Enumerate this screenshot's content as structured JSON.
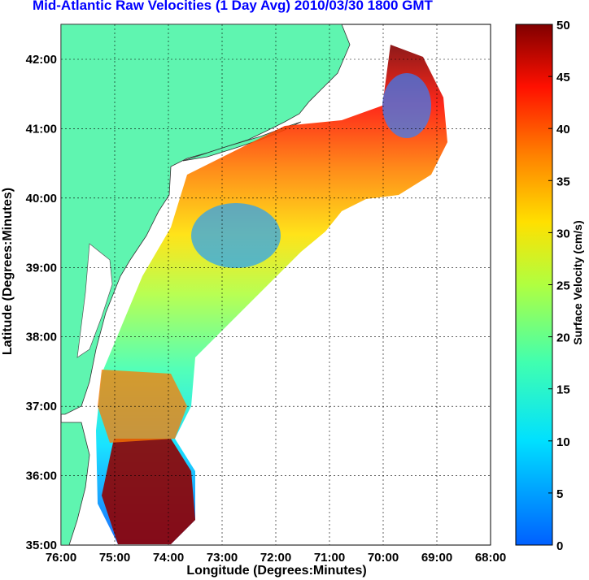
{
  "title": "Mid-Atlantic Raw Velocities (1 Day Avg) 2010/03/30 1800 GMT",
  "xlabel": "Longitude (Degrees:Minutes)",
  "ylabel": "Latitude (Degrees:Minutes)",
  "colorbar_label": "Surface Velocity (cm/s)",
  "x_ticks": [
    "76:00",
    "75:00",
    "74:00",
    "73:00",
    "72:00",
    "71:00",
    "70:00",
    "69:00",
    "68:00"
  ],
  "y_ticks": [
    "42:00",
    "41:00",
    "40:00",
    "39:00",
    "38:00",
    "37:00",
    "36:00",
    "35:00"
  ],
  "colorbar_ticks": [
    "50",
    "45",
    "40",
    "35",
    "30",
    "25",
    "20",
    "15",
    "10",
    "5",
    "0"
  ],
  "colors": {
    "land": "#5ff5b0",
    "title": "#0000ff",
    "coast": "#888888"
  }
}
